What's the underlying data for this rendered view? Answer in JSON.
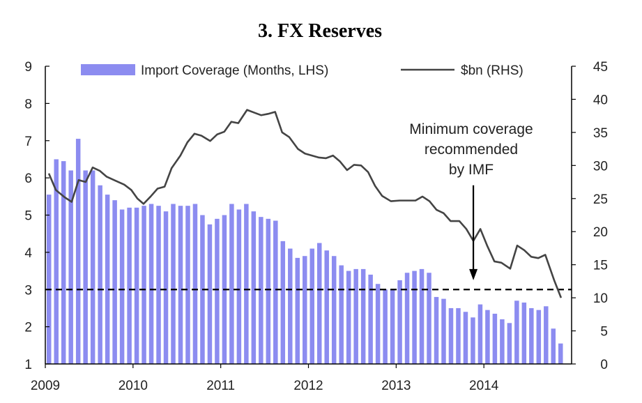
{
  "chart_data": {
    "type": "bar+line",
    "title": "3. FX Reserves",
    "legend": {
      "placement": "top",
      "entries": [
        "Import Coverage (Months, LHS)",
        "$bn (RHS)"
      ]
    },
    "bar_color": "#8c8cf0",
    "line_color": "#444444",
    "x_range": [
      2009,
      2015
    ],
    "x_ticks": [
      2009,
      2010,
      2011,
      2012,
      2013,
      2014
    ],
    "x_tick_labels": [
      "2009",
      "2010",
      "2011",
      "2012",
      "2013",
      "2014"
    ],
    "y_left": {
      "range": [
        1,
        9
      ],
      "ticks": [
        "1",
        "2",
        "3",
        "4",
        "5",
        "6",
        "7",
        "8",
        "9"
      ]
    },
    "y_right": {
      "range": [
        0,
        45
      ],
      "ticks": [
        "0",
        "5",
        "10",
        "15",
        "20",
        "25",
        "30",
        "35",
        "40",
        "45"
      ]
    },
    "series": [
      {
        "name": "Import Coverage (Months, LHS)",
        "type": "bar",
        "axis": "left",
        "values": [
          5.55,
          6.5,
          6.45,
          6.2,
          7.05,
          6.2,
          6.2,
          5.8,
          5.55,
          5.4,
          5.15,
          5.2,
          5.2,
          5.25,
          5.3,
          5.25,
          5.1,
          5.3,
          5.25,
          5.25,
          5.3,
          5.0,
          4.75,
          4.9,
          5.0,
          5.3,
          5.15,
          5.3,
          5.1,
          4.95,
          4.9,
          4.85,
          4.3,
          4.1,
          3.85,
          3.9,
          4.1,
          4.25,
          4.05,
          3.9,
          3.65,
          3.5,
          3.55,
          3.55,
          3.4,
          3.15,
          3.0,
          3.0,
          3.25,
          3.45,
          3.5,
          3.55,
          3.45,
          2.8,
          2.75,
          2.5,
          2.5,
          2.4,
          2.25,
          2.6,
          2.45,
          2.35,
          2.2,
          2.1,
          2.7,
          2.65,
          2.5,
          2.45,
          2.55,
          1.95,
          1.55
        ]
      },
      {
        "name": "$bn (RHS)",
        "type": "line",
        "axis": "right",
        "points": [
          [
            2009.04,
            28.8
          ],
          [
            2009.12,
            26.3
          ],
          [
            2009.22,
            25.2
          ],
          [
            2009.3,
            24.5
          ],
          [
            2009.38,
            27.8
          ],
          [
            2009.46,
            27.5
          ],
          [
            2009.54,
            29.7
          ],
          [
            2009.62,
            29.2
          ],
          [
            2009.7,
            28.3
          ],
          [
            2009.8,
            27.7
          ],
          [
            2009.9,
            27.1
          ],
          [
            2009.98,
            26.3
          ],
          [
            2010.05,
            25.0
          ],
          [
            2010.12,
            24.2
          ],
          [
            2010.2,
            25.3
          ],
          [
            2010.28,
            26.5
          ],
          [
            2010.36,
            26.8
          ],
          [
            2010.44,
            29.6
          ],
          [
            2010.54,
            31.5
          ],
          [
            2010.62,
            33.5
          ],
          [
            2010.7,
            34.8
          ],
          [
            2010.78,
            34.5
          ],
          [
            2010.88,
            33.7
          ],
          [
            2010.96,
            34.7
          ],
          [
            2011.04,
            35.1
          ],
          [
            2011.12,
            36.6
          ],
          [
            2011.2,
            36.4
          ],
          [
            2011.3,
            38.4
          ],
          [
            2011.38,
            38.0
          ],
          [
            2011.46,
            37.6
          ],
          [
            2011.54,
            37.8
          ],
          [
            2011.62,
            38.1
          ],
          [
            2011.7,
            35.0
          ],
          [
            2011.78,
            34.3
          ],
          [
            2011.88,
            32.5
          ],
          [
            2011.96,
            31.8
          ],
          [
            2012.04,
            31.5
          ],
          [
            2012.12,
            31.2
          ],
          [
            2012.2,
            31.1
          ],
          [
            2012.28,
            31.5
          ],
          [
            2012.36,
            30.6
          ],
          [
            2012.44,
            29.3
          ],
          [
            2012.52,
            30.1
          ],
          [
            2012.6,
            30.0
          ],
          [
            2012.68,
            29.0
          ],
          [
            2012.76,
            26.9
          ],
          [
            2012.84,
            25.4
          ],
          [
            2012.94,
            24.6
          ],
          [
            2013.04,
            24.7
          ],
          [
            2013.14,
            24.7
          ],
          [
            2013.22,
            24.7
          ],
          [
            2013.3,
            25.3
          ],
          [
            2013.38,
            24.6
          ],
          [
            2013.46,
            23.3
          ],
          [
            2013.54,
            22.8
          ],
          [
            2013.62,
            21.6
          ],
          [
            2013.72,
            21.6
          ],
          [
            2013.8,
            20.4
          ],
          [
            2013.88,
            18.6
          ],
          [
            2013.96,
            20.4
          ],
          [
            2014.04,
            17.8
          ],
          [
            2014.12,
            15.5
          ],
          [
            2014.2,
            15.3
          ],
          [
            2014.3,
            14.4
          ],
          [
            2014.38,
            17.9
          ],
          [
            2014.46,
            17.2
          ],
          [
            2014.54,
            16.2
          ],
          [
            2014.62,
            16.0
          ],
          [
            2014.7,
            16.5
          ],
          [
            2014.8,
            12.7
          ],
          [
            2014.88,
            10.0
          ]
        ]
      }
    ],
    "reference_line": {
      "axis": "left",
      "value": 3,
      "style": "dashed"
    },
    "annotation": {
      "lines": [
        "Minimum coverage",
        "recommended",
        "by IMF"
      ],
      "arrow_x": 2013.88,
      "arrow_from_y_left": 5.8,
      "arrow_to_y_left": 3.25
    }
  }
}
